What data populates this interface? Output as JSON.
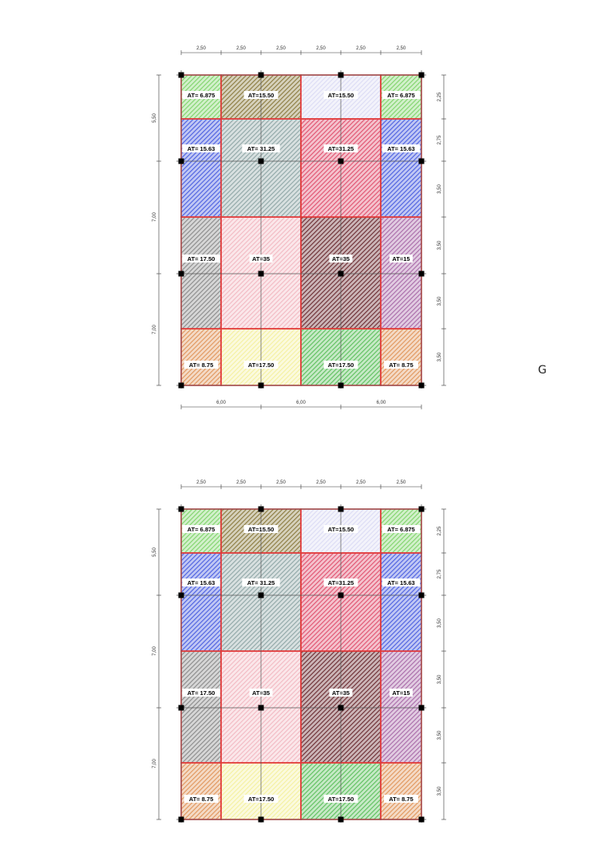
{
  "side_label": "G",
  "plans": [
    {
      "top_dims": [
        "2,50",
        "2,50",
        "2,50",
        "2,50",
        "2,50",
        "2,50"
      ],
      "bottom_dims": [
        "6,00",
        "6,00",
        "6,00"
      ],
      "left_dims": [
        "5,50",
        "7,00",
        "7,00"
      ],
      "right_dims": [
        "2,25",
        "2,75",
        "3,50",
        "3,50",
        "3,50",
        "3,50"
      ],
      "areas": [
        "AT= 6.875",
        "AT=15.50",
        "AT=15.50",
        "AT= 6.875",
        "AT= 15.63",
        "AT= 31.25",
        "AT=31.25",
        "AT= 15.63",
        "AT= 17.50",
        "AT=35",
        "AT=35",
        "AT=15",
        "AT= 8.75",
        "AT=17.50",
        "AT=17.50",
        "AT= 8.75"
      ]
    },
    {
      "top_dims": [
        "2,50",
        "2,50",
        "2,50",
        "2,50",
        "2,50",
        "2,50"
      ],
      "left_dims": [
        "5,50",
        "7,00",
        "7,00"
      ],
      "right_dims": [
        "2,25",
        "2,75",
        "3,50",
        "3,50",
        "3,50",
        "3,50"
      ],
      "areas": [
        "AT= 6.875",
        "AT=15.50",
        "AT=15.50",
        "AT= 6.875",
        "AT= 15.63",
        "AT= 31.25",
        "AT=31.25",
        "AT= 15.63",
        "AT= 17.50",
        "AT=35",
        "AT=35",
        "AT=15",
        "AT= 8.75",
        "AT=17.50",
        "AT=17.50",
        "AT= 8.75"
      ]
    }
  ],
  "colors": {
    "outline": "#e23b3b",
    "axis": "#555555",
    "node": "#000000",
    "tributary_fills": [
      "#7fd36a",
      "#8a7a3e",
      "#dcdcf4",
      "#7fd36a",
      "#4a5ee0",
      "#8fa6a6",
      "#e0506e",
      "#4a5ee0",
      "#8a8a8a",
      "#f2b9c2",
      "#6a2a30",
      "#a86aa8",
      "#e0955a",
      "#f4f0a0",
      "#5cbf5c",
      "#e0955a"
    ]
  }
}
